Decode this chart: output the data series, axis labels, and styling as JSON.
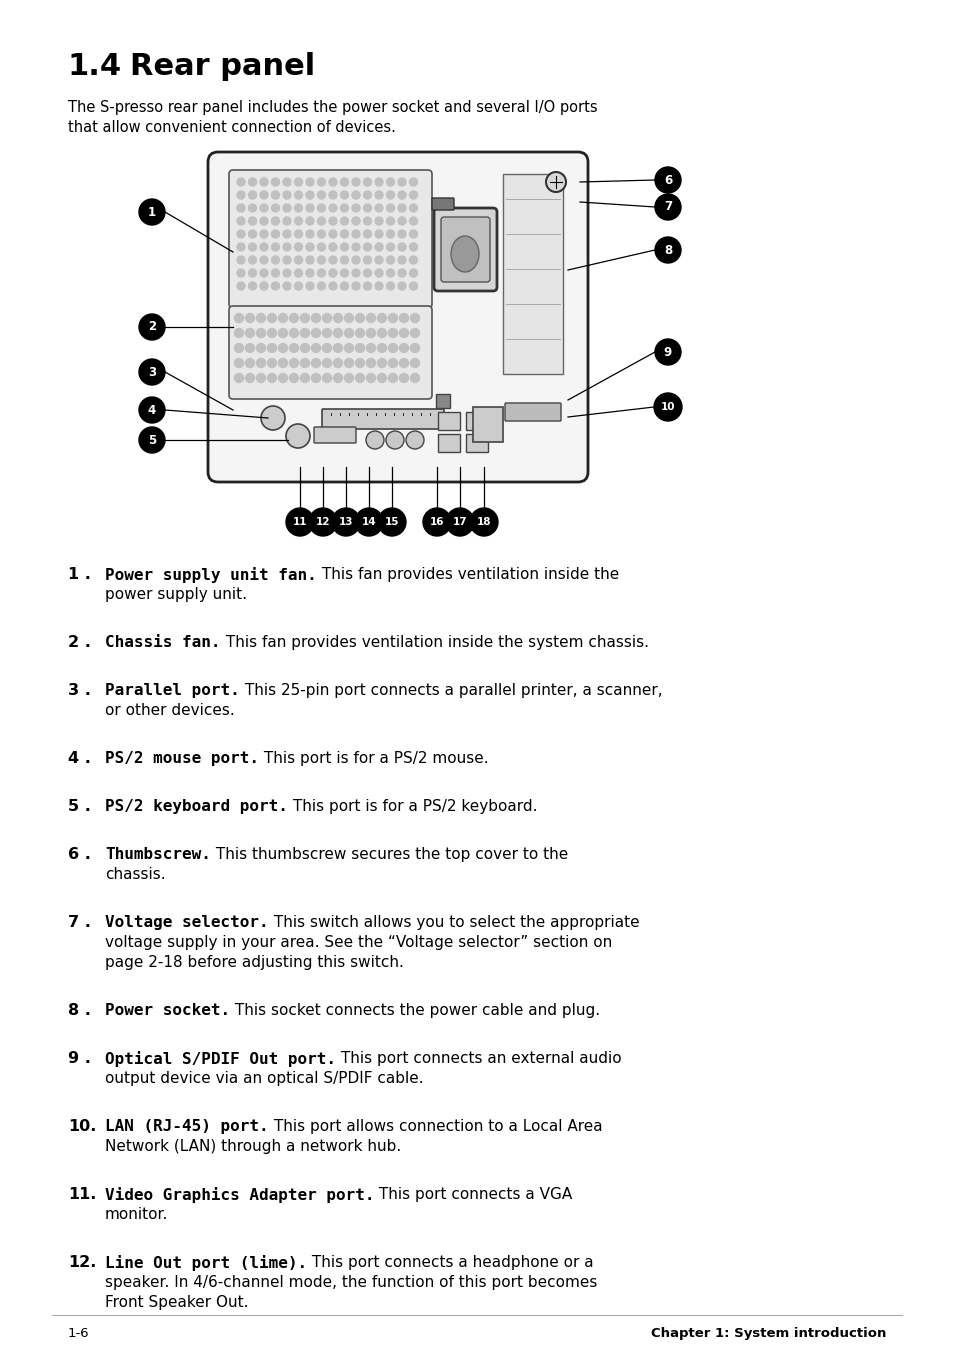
{
  "title_num": "1.4",
  "title_text": "Rear panel",
  "intro_line1": "The S-presso rear panel includes the power socket and several I/O ports",
  "intro_line2": "that allow convenient connection of devices.",
  "items": [
    {
      "num": "1 .",
      "bold": "Power supply unit fan.",
      "rest": " This fan provides ventilation inside the",
      "cont": [
        "power supply unit."
      ]
    },
    {
      "num": "2 .",
      "bold": "Chassis fan.",
      "rest": " This fan provides ventilation inside the system chassis.",
      "cont": []
    },
    {
      "num": "3 .",
      "bold": "Parallel port.",
      "rest": " This 25-pin port connects a parallel printer, a scanner,",
      "cont": [
        "or other devices."
      ]
    },
    {
      "num": "4 .",
      "bold": "PS/2 mouse port.",
      "rest": " This port is for a PS/2 mouse.",
      "cont": []
    },
    {
      "num": "5 .",
      "bold": "PS/2 keyboard port.",
      "rest": " This port is for a PS/2 keyboard.",
      "cont": []
    },
    {
      "num": "6 .",
      "bold": "Thumbscrew.",
      "rest": " This thumbscrew secures the top cover to the",
      "cont": [
        "chassis."
      ]
    },
    {
      "num": "7 .",
      "bold": "Voltage selector.",
      "rest": " This switch allows you to select the appropriate",
      "cont": [
        "voltage supply in your area. See the “Voltage selector” section on",
        "page 2-18 before adjusting this switch."
      ]
    },
    {
      "num": "8 .",
      "bold": "Power socket.",
      "rest": " This socket connects the power cable and plug.",
      "cont": []
    },
    {
      "num": "9 .",
      "bold": "Optical S/PDIF Out port.",
      "rest": " This port connects an external audio",
      "cont": [
        "output device via an optical S/PDIF cable."
      ]
    },
    {
      "num": "10.",
      "bold": "LAN (RJ-45) port.",
      "rest": " This port allows connection to a Local Area",
      "cont": [
        "Network (LAN) through a network hub."
      ]
    },
    {
      "num": "11.",
      "bold": "Video Graphics Adapter port.",
      "rest": " This port connects a VGA",
      "cont": [
        "monitor."
      ]
    },
    {
      "num": "12.",
      "bold": "Line Out port (lime).",
      "rest": " This port connects a headphone or a",
      "cont": [
        "speaker. In 4/6-channel mode, the function of this port becomes",
        "Front Speaker Out."
      ]
    }
  ],
  "footer_left": "1-6",
  "footer_right": "Chapter 1: System introduction",
  "bg_color": "#ffffff",
  "text_color": "#000000"
}
